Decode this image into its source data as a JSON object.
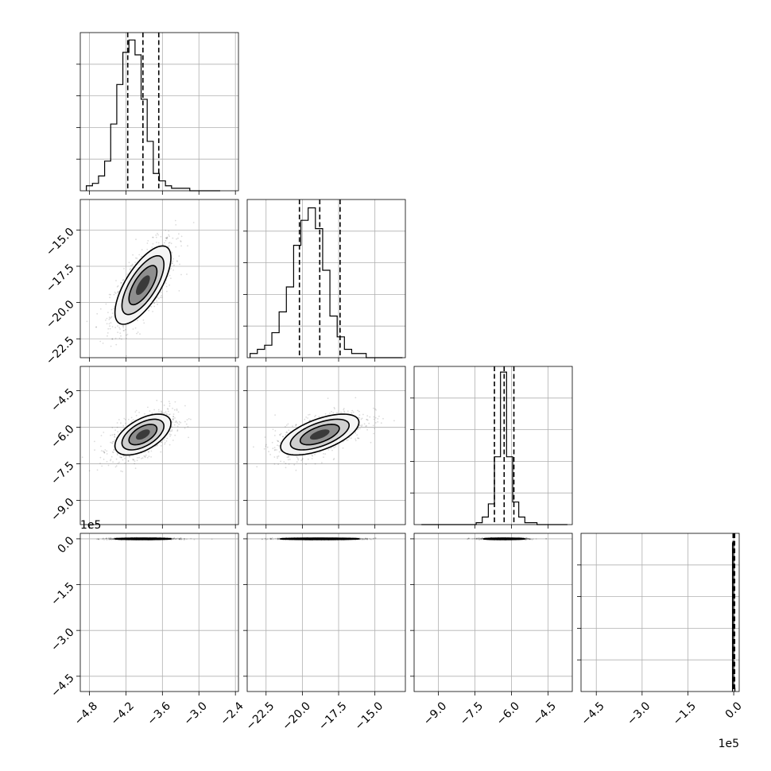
{
  "chart_data": {
    "type": "corner",
    "grid": true,
    "params": [
      {
        "range": [
          -4.95,
          -2.35
        ],
        "ticks": [
          -4.8,
          -4.2,
          -3.6,
          -3.0,
          -2.4
        ],
        "tick_labels": [
          "−4.8",
          "−4.2",
          "−3.6",
          "−3.0",
          "−2.4"
        ],
        "quantiles": [
          -4.17,
          -3.92,
          -3.66
        ]
      },
      {
        "range": [
          -23.8,
          -12.9
        ],
        "ticks": [
          -22.5,
          -20.0,
          -17.5,
          -15.0
        ],
        "tick_labels": [
          "−22.5",
          "−20.0",
          "−17.5",
          "−15.0"
        ],
        "quantiles": [
          -20.2,
          -18.8,
          -17.4
        ]
      },
      {
        "range": [
          -10.0,
          -3.5
        ],
        "ticks": [
          -9.0,
          -7.5,
          -6.0,
          -4.5
        ],
        "tick_labels": [
          "−9.0",
          "−7.5",
          "−6.0",
          "−4.5"
        ],
        "quantiles": [
          -6.7,
          -6.3,
          -5.9
        ]
      },
      {
        "range": [
          -5.0,
          0.18
        ],
        "ticks": [
          -4.5,
          -3.0,
          -1.5,
          0.0
        ],
        "tick_labels": [
          "−4.5",
          "−3.0",
          "−1.5",
          "0.0"
        ],
        "quantiles": [
          -0.02,
          0.0,
          0.03
        ],
        "offset_label": "1e5"
      }
    ],
    "histograms": [
      {
        "edges_start": -4.85,
        "bin_width": 0.1,
        "counts": [
          2,
          3,
          6,
          12,
          27,
          43,
          56,
          61,
          55,
          37,
          20,
          7,
          4,
          2,
          1,
          1,
          1,
          0,
          0,
          0,
          0,
          0
        ],
        "ymax": 64
      },
      {
        "edges_start": -23.6,
        "bin_width": 0.5,
        "counts": [
          1,
          2,
          3,
          6,
          11,
          17,
          27,
          33,
          36,
          31,
          21,
          10,
          5,
          2,
          1,
          1,
          0,
          0,
          0,
          0,
          0
        ],
        "ymax": 38
      },
      {
        "edges_start": -9.7,
        "bin_width": 0.25,
        "counts": [
          0,
          0,
          0,
          0,
          0,
          0,
          0,
          0,
          0,
          1,
          4,
          11,
          36,
          81,
          36,
          12,
          4,
          1,
          1,
          0,
          0,
          0,
          0,
          0
        ],
        "ymax": 84
      },
      {
        "edges_start": -0.04,
        "bin_width": 0.04,
        "counts": [
          94,
          2
        ],
        "ymax": 100
      }
    ],
    "pairs": [
      {
        "row": 1,
        "col": 0,
        "mean": [
          -3.92,
          -18.8
        ],
        "sd": [
          0.23,
          1.35
        ],
        "rho": 0.7
      },
      {
        "row": 2,
        "col": 0,
        "mean": [
          -3.92,
          -6.3
        ],
        "sd": [
          0.23,
          0.42
        ],
        "rho": 0.55
      },
      {
        "row": 2,
        "col": 1,
        "mean": [
          -18.8,
          -6.3
        ],
        "sd": [
          1.35,
          0.42
        ],
        "rho": 0.6
      },
      {
        "row": 3,
        "col": 0,
        "mean": [
          -3.92,
          0.0
        ],
        "sd": [
          0.23,
          0.012
        ],
        "rho": 0.0
      },
      {
        "row": 3,
        "col": 1,
        "mean": [
          -18.8,
          0.0
        ],
        "sd": [
          1.35,
          0.012
        ],
        "rho": 0.0
      },
      {
        "row": 3,
        "col": 2,
        "mean": [
          -6.3,
          0.0
        ],
        "sd": [
          0.42,
          0.012
        ],
        "rho": 0.0
      }
    ]
  }
}
